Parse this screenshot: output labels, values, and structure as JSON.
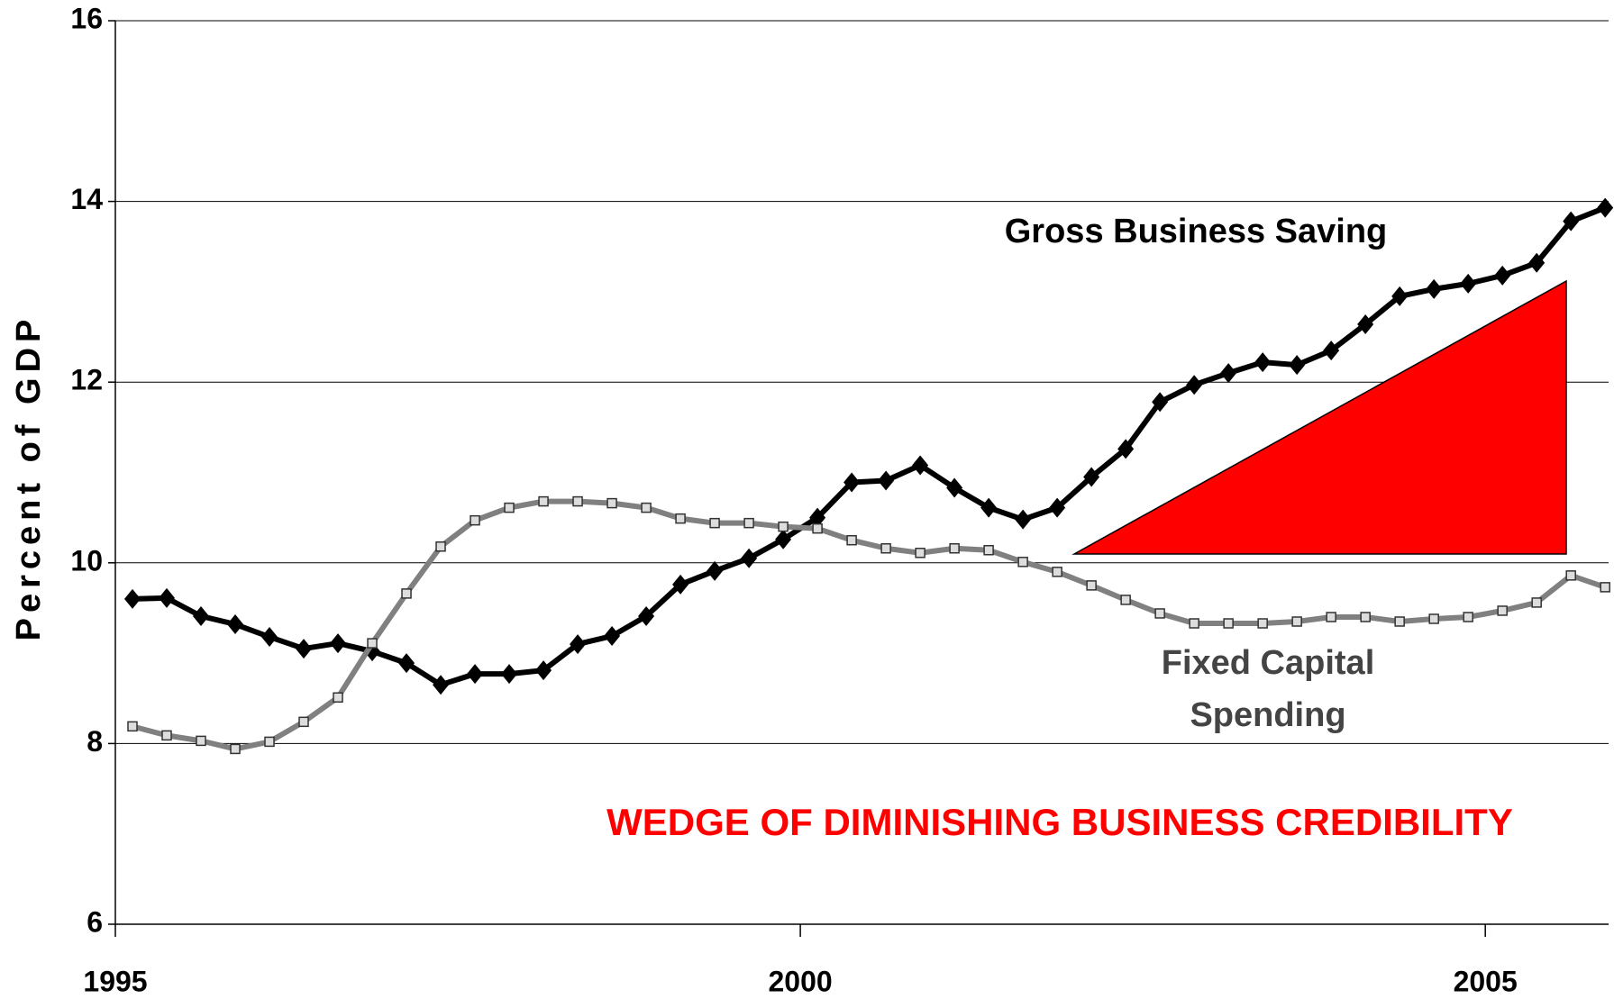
{
  "chart_data": {
    "type": "line",
    "y_label": "Percent of GDP",
    "x": [
      1995.125,
      1995.375,
      1995.625,
      1995.875,
      1996.125,
      1996.375,
      1996.625,
      1996.875,
      1997.125,
      1997.375,
      1997.625,
      1997.875,
      1998.125,
      1998.375,
      1998.625,
      1998.875,
      1999.125,
      1999.375,
      1999.625,
      1999.875,
      2000.125,
      2000.375,
      2000.625,
      2000.875,
      2001.125,
      2001.375,
      2001.625,
      2001.875,
      2002.125,
      2002.375,
      2002.625,
      2002.875,
      2003.125,
      2003.375,
      2003.625,
      2003.875,
      2004.125,
      2004.375,
      2004.625,
      2004.875,
      2005.125,
      2005.375,
      2005.625,
      2005.875
    ],
    "series": [
      {
        "name": "Gross Business Saving",
        "color": "#000000",
        "marker": "diamond",
        "values": [
          9.6,
          9.61,
          9.41,
          9.32,
          9.18,
          9.05,
          9.11,
          9.02,
          8.89,
          8.65,
          8.77,
          8.77,
          8.81,
          9.1,
          9.19,
          9.41,
          9.76,
          9.91,
          10.05,
          10.26,
          10.5,
          10.89,
          10.91,
          11.08,
          10.83,
          10.61,
          10.48,
          10.61,
          10.95,
          11.26,
          11.78,
          11.97,
          12.1,
          12.22,
          12.19,
          12.35,
          12.64,
          12.95,
          13.03,
          13.09,
          13.18,
          13.32,
          13.78,
          13.93
        ]
      },
      {
        "name": "Fixed Capital Spending",
        "color": "#808080",
        "marker": "square",
        "values": [
          8.19,
          8.09,
          8.03,
          7.94,
          8.02,
          8.24,
          8.51,
          9.11,
          9.66,
          10.18,
          10.47,
          10.61,
          10.68,
          10.68,
          10.66,
          10.61,
          10.49,
          10.44,
          10.44,
          10.4,
          10.38,
          10.25,
          10.16,
          10.11,
          10.16,
          10.14,
          10.01,
          9.9,
          9.75,
          9.59,
          9.44,
          9.33,
          9.33,
          9.33,
          9.35,
          9.4,
          9.4,
          9.35,
          9.38,
          9.4,
          9.47,
          9.56,
          9.86,
          9.73
        ]
      }
    ],
    "annotations": [
      "Gross Business Saving",
      "Fixed Capital",
      "Spending",
      "WEDGE OF DIMINISHING BUSINESS CREDIBILITY"
    ],
    "xlim": [
      1995,
      2005.9
    ],
    "xticks": [
      1995,
      2000,
      2005
    ],
    "ylim": [
      6,
      16
    ],
    "yticks": [
      6,
      8,
      10,
      12,
      14,
      16
    ],
    "grid": true
  }
}
